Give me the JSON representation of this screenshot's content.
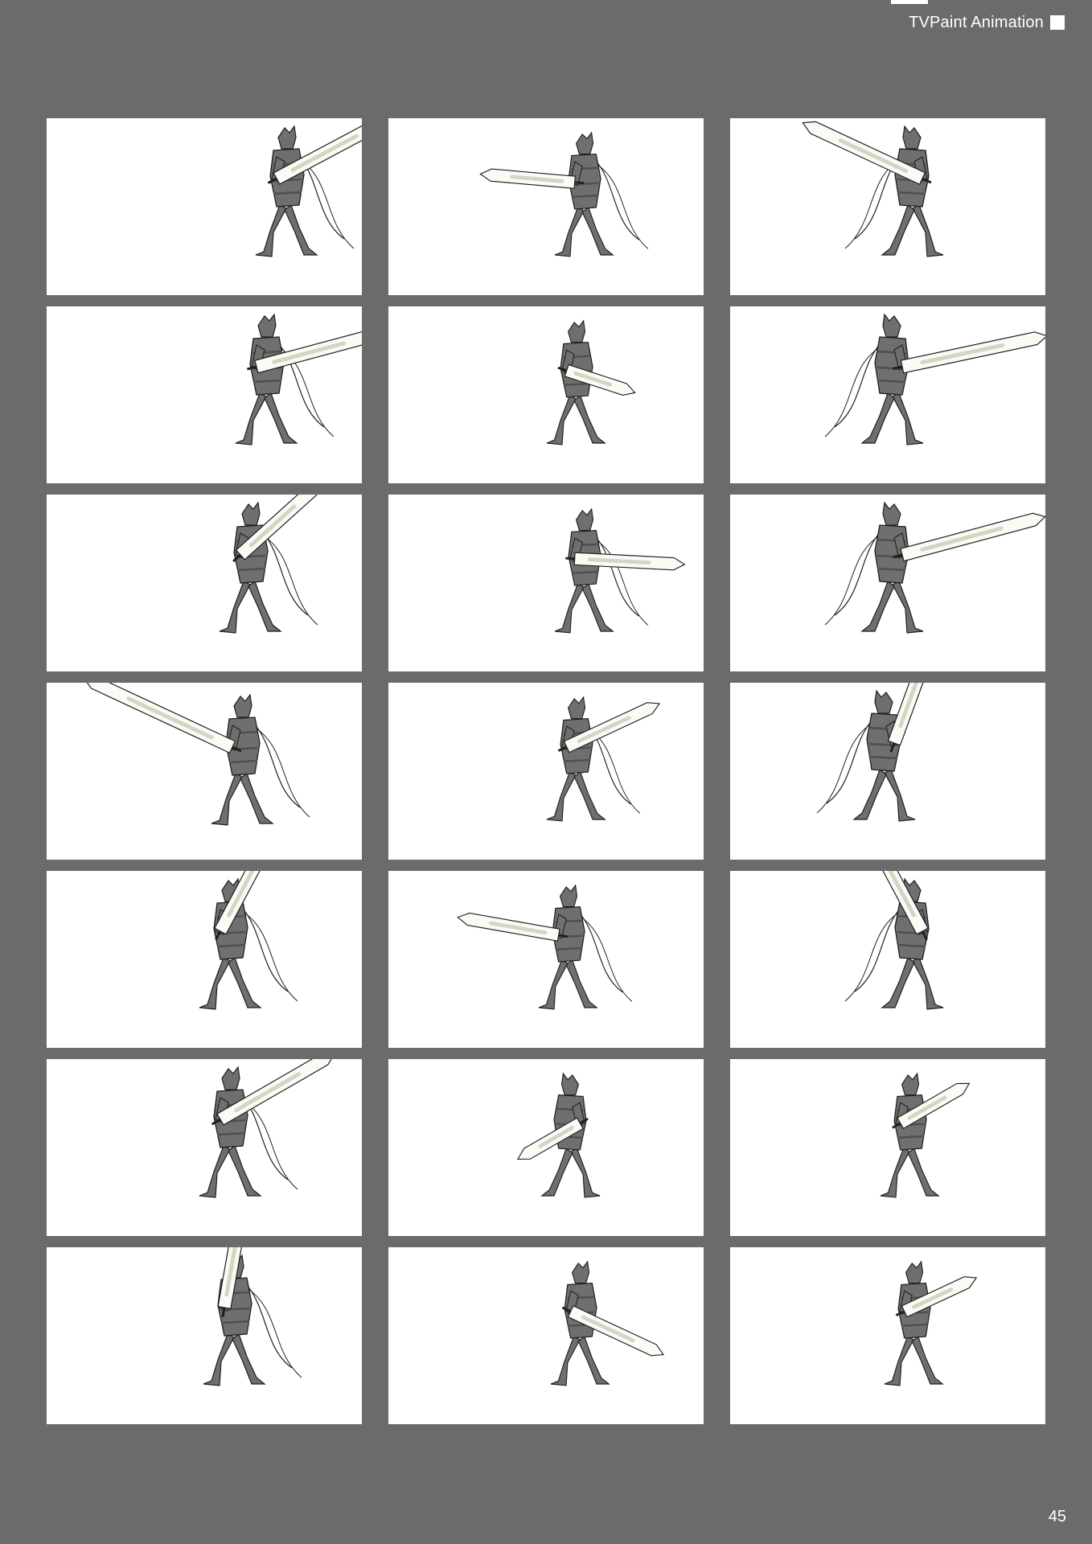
{
  "header": {
    "title": "TVPaint Animation"
  },
  "page_number": "45",
  "colors": {
    "page_background": "#6b6b6b",
    "panel_background": "#ffffff",
    "figure_fill": "#6f6f6f",
    "figure_shade": "#4f4f4f",
    "blade_fill": "#fbfbf6",
    "blade_highlight": "#d5d5c4",
    "ink": "#1f1f1f"
  },
  "storyboard": {
    "panels": [
      {
        "pose": "back-turned, sword over right shoulder"
      },
      {
        "pose": "sword held low to the left"
      },
      {
        "pose": "sword raised diagonally over shoulder"
      },
      {
        "pose": "wind-up, sword extended behind"
      },
      {
        "pose": "back view, sword low to the right"
      },
      {
        "pose": "lunging, sword thrust left"
      },
      {
        "pose": "stepping forward, sword raised up-right"
      },
      {
        "pose": "twisting, sword extended right"
      },
      {
        "pose": "crouched lunge, sword thrust left"
      },
      {
        "pose": "wide swing, sword held up-left"
      },
      {
        "pose": "slim stance, sword up-right"
      },
      {
        "pose": "sword held vertical overhead"
      },
      {
        "pose": "overhead grip, sword vertical"
      },
      {
        "pose": "turning, sword low to the left"
      },
      {
        "pose": "overhead grip, sword tilted right"
      },
      {
        "pose": "overhead swing, sword up-right"
      },
      {
        "pose": "recovering, sword low behind"
      },
      {
        "pose": "walking, sword on back"
      },
      {
        "pose": "holding sword upright above head"
      },
      {
        "pose": "crouched, sword trailing down-right"
      },
      {
        "pose": "standing, sword on back"
      }
    ]
  }
}
